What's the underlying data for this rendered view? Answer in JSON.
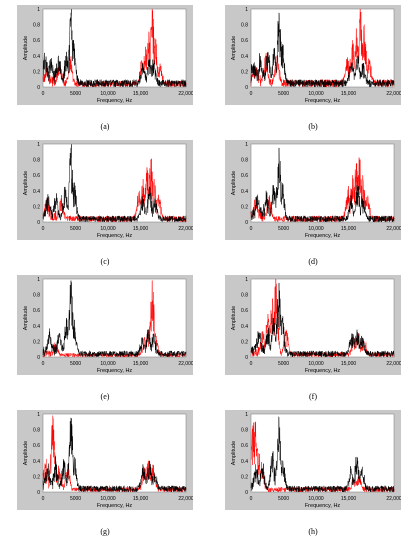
{
  "chart_data": [
    {
      "type": "line",
      "panel_label": "(a)",
      "ylabel": "Amplitude",
      "xlabel": "Frequency, Hz",
      "xlim": [
        0,
        22000
      ],
      "ylim": [
        0,
        1
      ],
      "x_ticks": [
        0,
        5000,
        10000,
        15000,
        22000
      ],
      "x_tick_labels": [
        "0",
        "5000",
        "10,000",
        "15,000",
        "22,000"
      ],
      "y_ticks": [
        0,
        0.2,
        0.4,
        0.6,
        0.8,
        1
      ],
      "y_tick_labels": [
        "0",
        "0.2",
        "0.4",
        "0.6",
        "0.8",
        "1"
      ],
      "series": [
        {
          "color": "#000000",
          "noise": 0.12,
          "peaks": [
            [
              300,
              0.35
            ],
            [
              1200,
              0.3
            ],
            [
              2400,
              0.4
            ],
            [
              3600,
              0.45
            ],
            [
              4300,
              0.95
            ],
            [
              4700,
              0.6
            ],
            [
              15400,
              0.25
            ],
            [
              16400,
              0.35
            ],
            [
              17000,
              0.3
            ]
          ]
        },
        {
          "color": "#ff0000",
          "noise": 0.1,
          "peaks": [
            [
              500,
              0.2
            ],
            [
              2500,
              0.3
            ],
            [
              4200,
              0.35
            ],
            [
              15200,
              0.3
            ],
            [
              15800,
              0.5
            ],
            [
              16300,
              0.7
            ],
            [
              16800,
              1.0
            ],
            [
              17300,
              0.6
            ],
            [
              18000,
              0.3
            ]
          ]
        }
      ]
    },
    {
      "type": "line",
      "panel_label": "(b)",
      "ylabel": "Amplitude",
      "xlabel": "Frequency, Hz",
      "xlim": [
        0,
        22000
      ],
      "ylim": [
        0,
        1
      ],
      "x_ticks": [
        0,
        5000,
        10000,
        15000,
        22000
      ],
      "x_tick_labels": [
        "0",
        "5000",
        "10,000",
        "15,000",
        "22,000"
      ],
      "y_ticks": [
        0,
        0.2,
        0.4,
        0.6,
        0.8,
        1
      ],
      "y_tick_labels": [
        "0",
        "0.2",
        "0.4",
        "0.6",
        "0.8",
        "1"
      ],
      "series": [
        {
          "color": "#000000",
          "noise": 0.12,
          "peaks": [
            [
              400,
              0.3
            ],
            [
              1500,
              0.35
            ],
            [
              2600,
              0.45
            ],
            [
              3600,
              0.5
            ],
            [
              4300,
              0.95
            ],
            [
              4800,
              0.55
            ],
            [
              15500,
              0.3
            ],
            [
              16400,
              0.4
            ],
            [
              17200,
              0.3
            ]
          ]
        },
        {
          "color": "#ff0000",
          "noise": 0.12,
          "peaks": [
            [
              700,
              0.25
            ],
            [
              2300,
              0.35
            ],
            [
              4000,
              0.4
            ],
            [
              14800,
              0.35
            ],
            [
              15600,
              0.6
            ],
            [
              16200,
              0.75
            ],
            [
              16800,
              1.0
            ],
            [
              17400,
              0.8
            ],
            [
              18200,
              0.35
            ]
          ]
        }
      ]
    },
    {
      "type": "line",
      "panel_label": "(c)",
      "ylabel": "Amplitude",
      "xlabel": "Frequency, Hz",
      "xlim": [
        0,
        22000
      ],
      "ylim": [
        0,
        1
      ],
      "x_ticks": [
        0,
        5000,
        10000,
        15000,
        22000
      ],
      "x_tick_labels": [
        "0",
        "5000",
        "10,000",
        "15,000",
        "22,000"
      ],
      "y_ticks": [
        0,
        0.2,
        0.4,
        0.6,
        0.8,
        1
      ],
      "y_tick_labels": [
        "0",
        "0.2",
        "0.4",
        "0.6",
        "0.8",
        "1"
      ],
      "series": [
        {
          "color": "#000000",
          "noise": 0.1,
          "peaks": [
            [
              800,
              0.25
            ],
            [
              2000,
              0.3
            ],
            [
              3400,
              0.45
            ],
            [
              4300,
              0.95
            ],
            [
              4800,
              0.5
            ],
            [
              15300,
              0.3
            ],
            [
              16400,
              0.45
            ],
            [
              17200,
              0.3
            ]
          ]
        },
        {
          "color": "#ff0000",
          "noise": 0.1,
          "peaks": [
            [
              600,
              0.2
            ],
            [
              2800,
              0.3
            ],
            [
              14800,
              0.4
            ],
            [
              15400,
              0.55
            ],
            [
              16000,
              0.7
            ],
            [
              16600,
              0.8
            ],
            [
              17100,
              0.55
            ],
            [
              17800,
              0.35
            ]
          ]
        }
      ]
    },
    {
      "type": "line",
      "panel_label": "(d)",
      "ylabel": "Amplitude",
      "xlabel": "Frequency, Hz",
      "xlim": [
        0,
        22000
      ],
      "ylim": [
        0,
        1
      ],
      "x_ticks": [
        0,
        5000,
        10000,
        15000,
        22000
      ],
      "x_tick_labels": [
        "0",
        "5000",
        "10,000",
        "15,000",
        "22,000"
      ],
      "y_ticks": [
        0,
        0.2,
        0.4,
        0.6,
        0.8,
        1
      ],
      "y_tick_labels": [
        "0",
        "0.2",
        "0.4",
        "0.6",
        "0.8",
        "1"
      ],
      "series": [
        {
          "color": "#000000",
          "noise": 0.1,
          "peaks": [
            [
              1000,
              0.3
            ],
            [
              2400,
              0.35
            ],
            [
              3500,
              0.45
            ],
            [
              4300,
              0.95
            ],
            [
              4800,
              0.5
            ],
            [
              15400,
              0.3
            ],
            [
              16400,
              0.45
            ],
            [
              17200,
              0.3
            ]
          ]
        },
        {
          "color": "#ff0000",
          "noise": 0.1,
          "peaks": [
            [
              700,
              0.2
            ],
            [
              2800,
              0.3
            ],
            [
              14900,
              0.4
            ],
            [
              15600,
              0.6
            ],
            [
              16200,
              0.75
            ],
            [
              16700,
              0.8
            ],
            [
              17200,
              0.6
            ],
            [
              17900,
              0.3
            ]
          ]
        }
      ]
    },
    {
      "type": "line",
      "panel_label": "(e)",
      "ylabel": "Amplitude",
      "xlabel": "Frequency, Hz",
      "xlim": [
        0,
        22000
      ],
      "ylim": [
        0,
        1
      ],
      "x_ticks": [
        0,
        5000,
        10000,
        15000,
        22000
      ],
      "x_tick_labels": [
        "0",
        "5000",
        "10,000",
        "15,000",
        "22,000"
      ],
      "y_ticks": [
        0,
        0.2,
        0.4,
        0.6,
        0.8,
        1
      ],
      "y_tick_labels": [
        "0",
        "0.2",
        "0.4",
        "0.6",
        "0.8",
        "1"
      ],
      "series": [
        {
          "color": "#000000",
          "noise": 0.1,
          "peaks": [
            [
              1000,
              0.25
            ],
            [
              2500,
              0.3
            ],
            [
              3600,
              0.5
            ],
            [
              4300,
              0.98
            ],
            [
              4800,
              0.45
            ],
            [
              15300,
              0.25
            ],
            [
              16200,
              0.35
            ],
            [
              17000,
              0.25
            ]
          ]
        },
        {
          "color": "#ff0000",
          "noise": 0.06,
          "peaks": [
            [
              2000,
              0.15
            ],
            [
              15600,
              0.25
            ],
            [
              16200,
              0.35
            ],
            [
              16800,
              0.98
            ],
            [
              17300,
              0.3
            ]
          ]
        }
      ]
    },
    {
      "type": "line",
      "panel_label": "(f)",
      "ylabel": "Amplitude",
      "xlabel": "Frequency, Hz",
      "xlim": [
        0,
        22000
      ],
      "ylim": [
        0,
        1
      ],
      "x_ticks": [
        0,
        5000,
        10000,
        15000,
        22000
      ],
      "x_tick_labels": [
        "0",
        "5000",
        "10,000",
        "15,000",
        "22,000"
      ],
      "y_ticks": [
        0,
        0.2,
        0.4,
        0.6,
        0.8,
        1
      ],
      "y_tick_labels": [
        "0",
        "0.2",
        "0.4",
        "0.6",
        "0.8",
        "1"
      ],
      "series": [
        {
          "color": "#000000",
          "noise": 0.1,
          "peaks": [
            [
              1200,
              0.3
            ],
            [
              2600,
              0.35
            ],
            [
              3500,
              0.5
            ],
            [
              4300,
              0.95
            ],
            [
              4800,
              0.5
            ],
            [
              15500,
              0.3
            ],
            [
              16300,
              0.35
            ],
            [
              17100,
              0.25
            ]
          ]
        },
        {
          "color": "#ff0000",
          "noise": 0.08,
          "peaks": [
            [
              1800,
              0.3
            ],
            [
              2600,
              0.55
            ],
            [
              3300,
              0.75
            ],
            [
              3800,
              1.0
            ],
            [
              5400,
              0.35
            ],
            [
              15800,
              0.25
            ],
            [
              16500,
              0.3
            ],
            [
              17400,
              0.2
            ]
          ]
        }
      ]
    },
    {
      "type": "line",
      "panel_label": "(g)",
      "ylabel": "Amplitude",
      "xlabel": "Frequency, Hz",
      "xlim": [
        0,
        22000
      ],
      "ylim": [
        0,
        1
      ],
      "x_ticks": [
        0,
        5000,
        10000,
        15000,
        22000
      ],
      "x_tick_labels": [
        "0",
        "5000",
        "10,000",
        "15,000",
        "22,000"
      ],
      "y_ticks": [
        0,
        0.2,
        0.4,
        0.6,
        0.8,
        1
      ],
      "y_tick_labels": [
        "0",
        "0.2",
        "0.4",
        "0.6",
        "0.8",
        "1"
      ],
      "series": [
        {
          "color": "#000000",
          "noise": 0.1,
          "peaks": [
            [
              700,
              0.3
            ],
            [
              2000,
              0.35
            ],
            [
              3200,
              0.4
            ],
            [
              4300,
              0.95
            ],
            [
              4800,
              0.45
            ],
            [
              15400,
              0.3
            ],
            [
              16400,
              0.4
            ],
            [
              17200,
              0.25
            ]
          ]
        },
        {
          "color": "#ff0000",
          "noise": 0.08,
          "peaks": [
            [
              400,
              0.35
            ],
            [
              1500,
              0.98
            ],
            [
              2500,
              0.3
            ],
            [
              3800,
              0.35
            ],
            [
              15600,
              0.3
            ],
            [
              16200,
              0.4
            ],
            [
              16900,
              0.35
            ]
          ]
        }
      ]
    },
    {
      "type": "line",
      "panel_label": "(h)",
      "ylabel": "Amplitude",
      "xlabel": "Frequency, Hz",
      "xlim": [
        0,
        22000
      ],
      "ylim": [
        0,
        1
      ],
      "x_ticks": [
        0,
        5000,
        10000,
        15000,
        22000
      ],
      "x_tick_labels": [
        "0",
        "5000",
        "10,000",
        "15,000",
        "22,000"
      ],
      "y_ticks": [
        0,
        0.2,
        0.4,
        0.6,
        0.8,
        1
      ],
      "y_tick_labels": [
        "0",
        "0.2",
        "0.4",
        "0.6",
        "0.8",
        "1"
      ],
      "series": [
        {
          "color": "#000000",
          "noise": 0.1,
          "peaks": [
            [
              800,
              0.25
            ],
            [
              1800,
              0.3
            ],
            [
              3300,
              0.5
            ],
            [
              4300,
              0.95
            ],
            [
              4900,
              0.4
            ],
            [
              15400,
              0.3
            ],
            [
              16300,
              0.45
            ],
            [
              17100,
              0.3
            ]
          ]
        },
        {
          "color": "#ff0000",
          "noise": 0.08,
          "peaks": [
            [
              300,
              0.85
            ],
            [
              700,
              0.9
            ],
            [
              1100,
              0.5
            ],
            [
              1700,
              0.3
            ],
            [
              15800,
              0.15
            ],
            [
              16600,
              0.2
            ]
          ]
        }
      ]
    }
  ]
}
